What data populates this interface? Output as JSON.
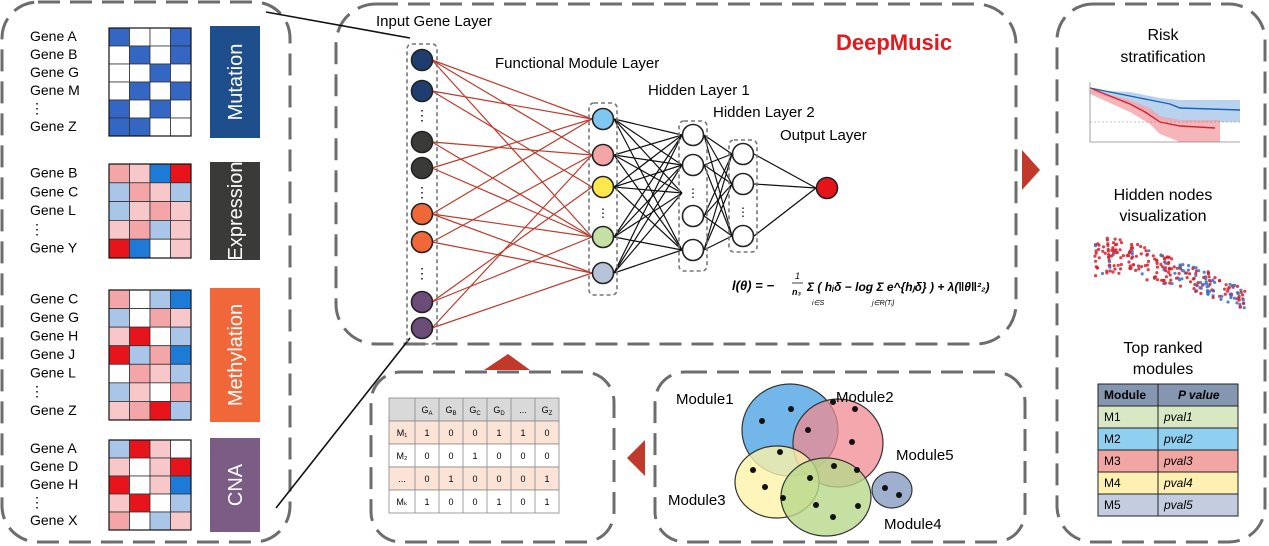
{
  "panels": {
    "omics": {
      "mutation": {
        "label": "Mutation",
        "color": "#1f4e8c",
        "genes": [
          "Gene A",
          "Gene B",
          "Gene G",
          "Gene M",
          "⋮",
          "Gene Z"
        ],
        "cells": [
          [
            2,
            0,
            0,
            2
          ],
          [
            0,
            1,
            0,
            1
          ],
          [
            0,
            0,
            1,
            0
          ],
          [
            0,
            2,
            0,
            1
          ],
          [
            1,
            0,
            1,
            0
          ],
          [
            2,
            2,
            0,
            0
          ]
        ]
      },
      "expression": {
        "label": "Expression",
        "color": "#3a3a38",
        "genes": [
          "Gene B",
          "Gene C",
          "Gene L",
          "⋮",
          "Gene Y"
        ],
        "cells": [
          [
            3,
            1,
            4,
            5
          ],
          [
            2,
            3,
            1,
            2
          ],
          [
            2,
            1,
            3,
            1
          ],
          [
            1,
            3,
            2,
            1
          ],
          [
            5,
            4,
            0,
            1
          ]
        ]
      },
      "methylation": {
        "label": "Methylation",
        "color": "#f0683a",
        "genes": [
          "Gene C",
          "Gene G",
          "Gene H",
          "Gene J",
          "Gene L",
          "⋮",
          "Gene Z"
        ],
        "cells": [
          [
            3,
            0,
            2,
            4
          ],
          [
            2,
            0,
            3,
            1
          ],
          [
            1,
            5,
            0,
            2
          ],
          [
            5,
            2,
            3,
            4
          ],
          [
            0,
            3,
            1,
            2
          ],
          [
            2,
            1,
            0,
            3
          ],
          [
            1,
            3,
            5,
            2
          ]
        ]
      },
      "cna": {
        "label": "CNA",
        "color": "#7b5c85",
        "genes": [
          "Gene A",
          "Gene D",
          "Gene H",
          "⋮",
          "Gene X"
        ],
        "cells": [
          [
            2,
            5,
            1,
            0
          ],
          [
            1,
            0,
            1,
            5
          ],
          [
            5,
            0,
            1,
            4
          ],
          [
            1,
            5,
            0,
            2
          ],
          [
            3,
            0,
            2,
            1
          ]
        ]
      }
    },
    "network": {
      "title": "DeepMusic",
      "title_color": "#e31a1c",
      "layers": [
        "Input Gene Layer",
        "Functional Module Layer",
        "Hidden Layer 1",
        "Hidden Layer 2",
        "Output Layer"
      ],
      "formula_lhs": "l(θ) = −",
      "formula_body": "Σ ( hᵢδ − log Σ e^{hⱼδ} ) + λ(‖θ‖²₂)",
      "formula_frac_num": "1",
      "formula_frac_den": "n₃",
      "formula_sub1": "i∈S",
      "formula_sub2": "j∈R(Tᵢ)"
    },
    "matrix": {
      "headers": [
        "",
        "G_A",
        "G_B",
        "G_C",
        "G_D",
        "...",
        "G_Z"
      ],
      "rows": [
        {
          "label": "M₁",
          "values": [
            "1",
            "0",
            "0",
            "1",
            "1",
            "0"
          ],
          "tint": "#fbe3d6"
        },
        {
          "label": "M₂",
          "values": [
            "0",
            "0",
            "1",
            "0",
            "0",
            "0"
          ],
          "tint": "#ffffff"
        },
        {
          "label": "...",
          "values": [
            "0",
            "1",
            "0",
            "0",
            "0",
            "1"
          ],
          "tint": "#fbe3d6"
        },
        {
          "label": "Mₖ",
          "values": [
            "1",
            "0",
            "0",
            "1",
            "0",
            "1"
          ],
          "tint": "#ffffff"
        }
      ]
    },
    "modules": {
      "labels": [
        "Module1",
        "Module2",
        "Module5",
        "Module3",
        "Module4"
      ],
      "colors": {
        "m1": "#5aa9e6",
        "m2": "#f08a91",
        "m3": "#fdf3a8",
        "m4": "#b8d88b",
        "m5": "#9fb0cf"
      }
    },
    "results": {
      "risk_title": [
        "Risk",
        "stratification"
      ],
      "hidden_title": [
        "Hidden nodes",
        "visualization"
      ],
      "top_title": [
        "Top ranked",
        "modules"
      ],
      "table_headers": [
        "Module",
        "P value"
      ],
      "table_rows": [
        {
          "module": "M1",
          "pval": "pval1",
          "color": "#d8e8c4"
        },
        {
          "module": "M2",
          "pval": "pval2",
          "color": "#8fd0f0"
        },
        {
          "module": "M3",
          "pval": "pval3",
          "color": "#f2a6a3"
        },
        {
          "module": "M4",
          "pval": "pval4",
          "color": "#fdf0b0"
        },
        {
          "module": "M5",
          "pval": "pval5",
          "color": "#c4cde0"
        }
      ]
    }
  },
  "heat_palette": [
    "#ffffff",
    "#c9d8f0",
    "#3d6fc4",
    "#ffd2d2",
    "#f3a8a8",
    "#e8141c"
  ],
  "expr_palette": [
    "#ffffff",
    "#f7c7c9",
    "#a9c6e8",
    "#f3a5a8",
    "#1d7ad6",
    "#e8141c"
  ],
  "node_colors": {
    "input": [
      "#1f3d6e",
      "#1f3d6e",
      "#3a3a38",
      "#3a3a38",
      "#f0683a",
      "#f0683a",
      "#6b4c78",
      "#6b4c78"
    ],
    "module": [
      "#7ec7ef",
      "#f4a6a6",
      "#fde74c",
      "#c5e0a5",
      "#b7c3d8"
    ],
    "output": "#e5131a"
  }
}
